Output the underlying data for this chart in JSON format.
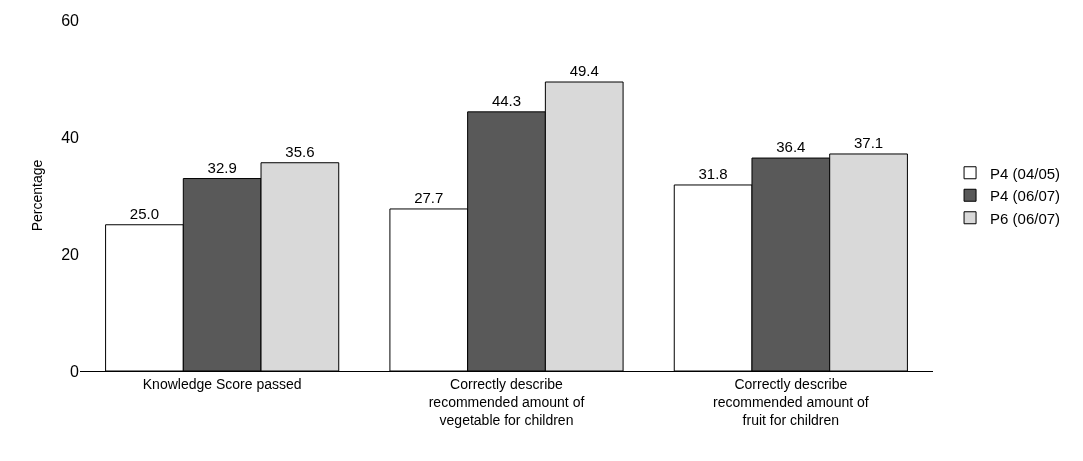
{
  "chart_data": {
    "type": "bar",
    "ylabel": "Percentage",
    "categories": [
      "Knowledge Score passed",
      "Correctly describe recommended amount of vegetable for children",
      "Correctly describe recommended amount of fruit for children"
    ],
    "series": [
      {
        "name": "P4 (04/05)",
        "color": "#ffffff",
        "values": [
          25.0,
          27.7,
          31.8
        ],
        "value_labels": [
          "25.0",
          "27.7",
          "31.8"
        ]
      },
      {
        "name": "P4 (06/07)",
        "color": "#595959",
        "values": [
          32.9,
          44.3,
          36.4
        ],
        "value_labels": [
          "32.9",
          "44.3",
          "36.4"
        ]
      },
      {
        "name": "P6 (06/07)",
        "color": "#d9d9d9",
        "values": [
          35.6,
          49.4,
          37.1
        ],
        "value_labels": [
          "35.6",
          "49.4",
          "37.1"
        ]
      }
    ],
    "ylim": [
      0,
      60
    ],
    "yticks": [
      0,
      20,
      40,
      60
    ],
    "grid": false,
    "legend": "right"
  }
}
